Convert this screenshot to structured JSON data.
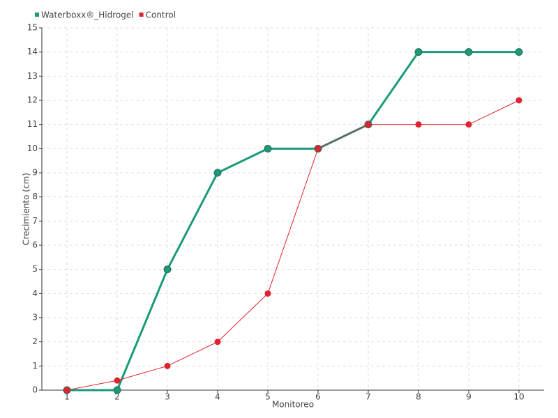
{
  "chart_data": {
    "type": "line",
    "x_label": "Monitoreo",
    "y_label": "Crecimiento (cm)",
    "x": [
      1,
      2,
      3,
      4,
      5,
      6,
      7,
      8,
      9,
      10
    ],
    "series": [
      {
        "name": "Waterboxx®_Hidrogel",
        "color": "#1a9a7a",
        "values": [
          0,
          0,
          5,
          9,
          10,
          10,
          11,
          14,
          14,
          14
        ]
      },
      {
        "name": "Control",
        "color": "#e0212e",
        "values": [
          0,
          0.4,
          1,
          2,
          4,
          10,
          11,
          11,
          11,
          12
        ]
      }
    ],
    "xlim": [
      0.5,
      10.5
    ],
    "xticks": [
      1,
      2,
      3,
      4,
      5,
      6,
      7,
      8,
      9,
      10
    ],
    "ylim": [
      0,
      15
    ],
    "yticks": [
      0,
      1,
      2,
      3,
      4,
      5,
      6,
      7,
      8,
      9,
      10,
      11,
      12,
      13,
      14,
      15
    ],
    "grid": true,
    "legend": "top-left"
  }
}
